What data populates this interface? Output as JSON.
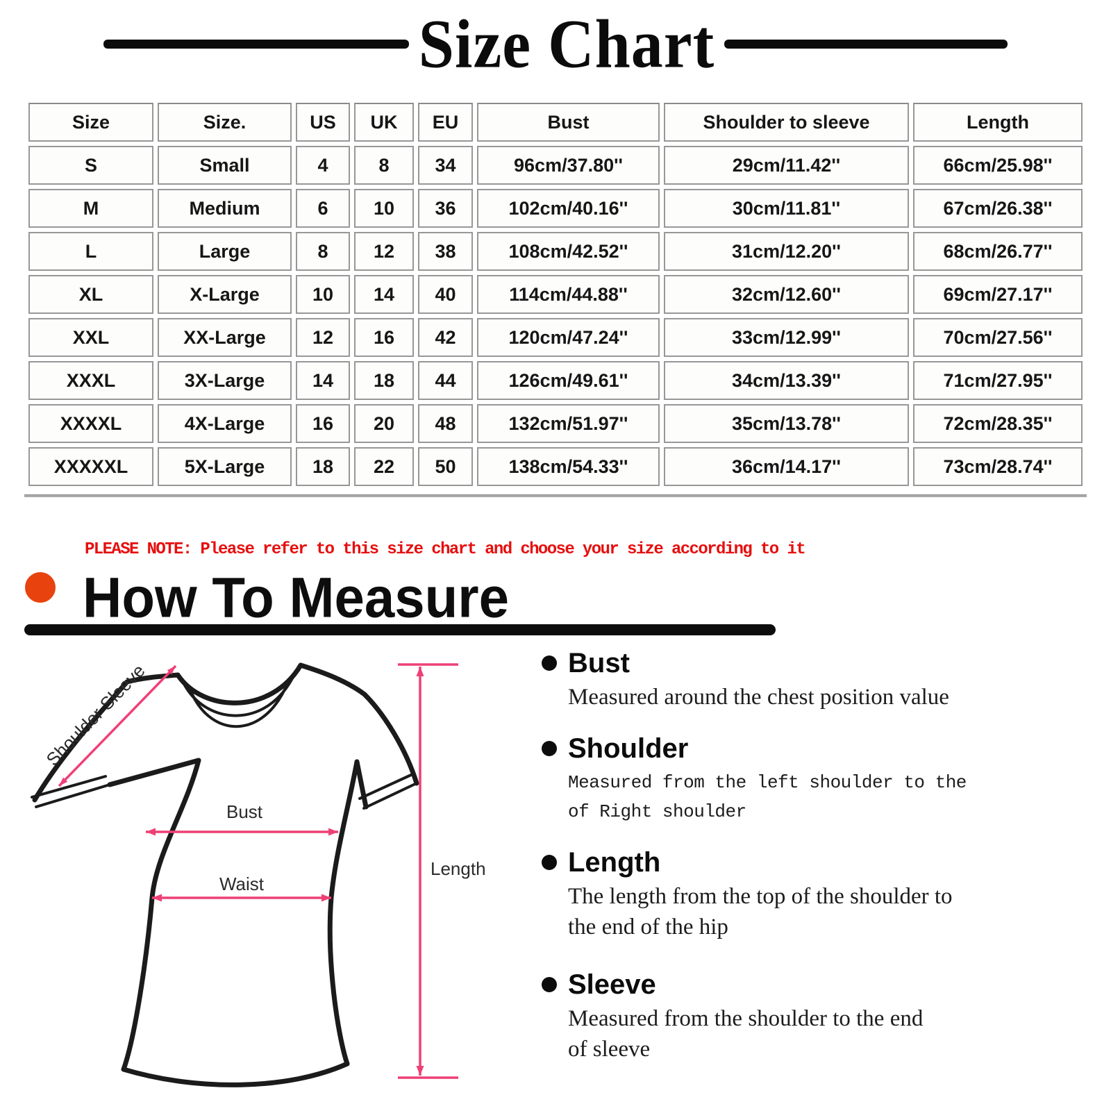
{
  "title": "Size Chart",
  "size_table": {
    "headers": [
      "Size",
      "Size.",
      "US",
      "UK",
      "EU",
      "Bust",
      "Shoulder to sleeve",
      "Length"
    ],
    "rows": [
      [
        "S",
        "Small",
        "4",
        "8",
        "34",
        "96cm/37.80''",
        "29cm/11.42''",
        "66cm/25.98''"
      ],
      [
        "M",
        "Medium",
        "6",
        "10",
        "36",
        "102cm/40.16''",
        "30cm/11.81''",
        "67cm/26.38''"
      ],
      [
        "L",
        "Large",
        "8",
        "12",
        "38",
        "108cm/42.52''",
        "31cm/12.20''",
        "68cm/26.77''"
      ],
      [
        "XL",
        "X-Large",
        "10",
        "14",
        "40",
        "114cm/44.88''",
        "32cm/12.60''",
        "69cm/27.17''"
      ],
      [
        "XXL",
        "XX-Large",
        "12",
        "16",
        "42",
        "120cm/47.24''",
        "33cm/12.99''",
        "70cm/27.56''"
      ],
      [
        "XXXL",
        "3X-Large",
        "14",
        "18",
        "44",
        "126cm/49.61''",
        "34cm/13.39''",
        "71cm/27.95''"
      ],
      [
        "XXXXL",
        "4X-Large",
        "16",
        "20",
        "48",
        "132cm/51.97''",
        "35cm/13.78''",
        "72cm/28.35''"
      ],
      [
        "XXXXXL",
        "5X-Large",
        "18",
        "22",
        "50",
        "138cm/54.33''",
        "36cm/14.17''",
        "73cm/28.74''"
      ]
    ]
  },
  "note": "PLEASE NOTE: Please refer to this size chart and choose your size according to it",
  "how_to_measure": {
    "heading": "How To Measure",
    "items": [
      {
        "title": "Bust",
        "desc": "Measured around the chest position value"
      },
      {
        "title": "Shoulder",
        "desc": "Measured from the left shoulder to the\nof Right shoulder"
      },
      {
        "title": "Length",
        "desc": "The length from the top of the shoulder to\nthe end of the hip"
      },
      {
        "title": "Sleeve",
        "desc": "Measured from the shoulder to the end\nof sleeve"
      }
    ]
  },
  "diagram": {
    "labels": {
      "shoulder_sleeve": "Shoulder Sleeve",
      "bust": "Bust",
      "waist": "Waist",
      "length": "Length"
    }
  },
  "colors": {
    "accent_pink": "#ee4077",
    "accent_orange": "#e8430f",
    "note_red": "#e60f0f"
  }
}
